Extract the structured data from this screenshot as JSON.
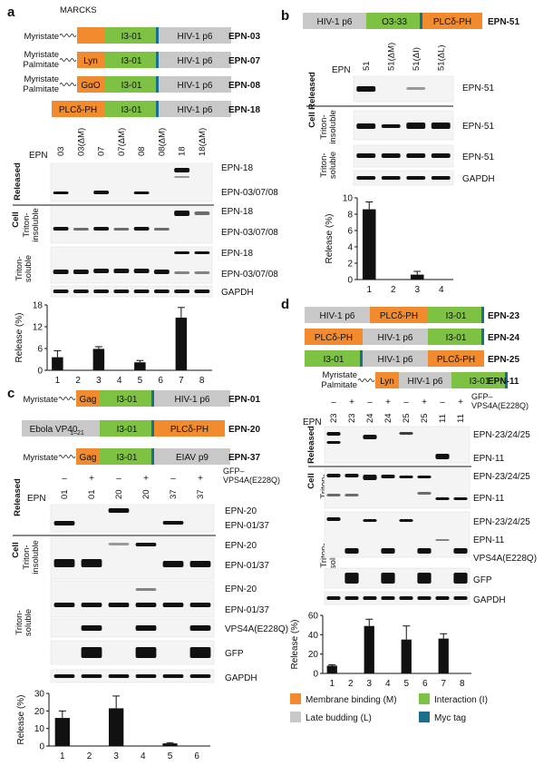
{
  "panels": {
    "a": {
      "letter": "a",
      "marcks_label": "MARCKS",
      "constructs": [
        {
          "lipid": [
            "Myristate"
          ],
          "blocks": [
            {
              "t": "",
              "c": "orange"
            },
            {
              "t": "I3-01",
              "c": "green"
            },
            {
              "t": "HIV-1 p6",
              "c": "grey"
            }
          ],
          "name": "EPN-03"
        },
        {
          "lipid": [
            "Myristate",
            "Palmitate"
          ],
          "blocks": [
            {
              "t": "Lyn",
              "c": "orange"
            },
            {
              "t": "I3-01",
              "c": "green"
            },
            {
              "t": "HIV-1 p6",
              "c": "grey"
            }
          ],
          "name": "EPN-07"
        },
        {
          "lipid": [
            "Myristate",
            "Palmitate"
          ],
          "blocks": [
            {
              "t": "GαO",
              "c": "orange"
            },
            {
              "t": "I3-01",
              "c": "green"
            },
            {
              "t": "HIV-1 p6",
              "c": "grey"
            }
          ],
          "name": "EPN-08"
        },
        {
          "lipid": [],
          "blocks": [
            {
              "t": "PLCδ-PH",
              "c": "orange"
            },
            {
              "t": "I3-01",
              "c": "green"
            },
            {
              "t": "HIV-1 p6",
              "c": "grey"
            }
          ],
          "name": "EPN-18"
        }
      ],
      "epn_label": "EPN",
      "lanes": [
        "03",
        "03(ΔM)",
        "07",
        "07(ΔM)",
        "08",
        "08(ΔM)",
        "18",
        "18(ΔM)"
      ],
      "released_label": "Released",
      "cell_label": "Cell",
      "triton_insoluble_label": "Triton-\ninsoluble",
      "triton_soluble_label": "Triton-\nsoluble",
      "bands": [
        "EPN-18",
        "EPN-03/07/08",
        "EPN-18",
        "EPN-03/07/08",
        "EPN-18",
        "EPN-03/07/08",
        "GAPDH"
      ],
      "chart": {
        "ylabel": "Release (%)",
        "yticks": [
          "0",
          "6",
          "12",
          "18"
        ],
        "xticks": [
          "1",
          "2",
          "3",
          "4",
          "5",
          "6",
          "7",
          "8"
        ]
      }
    },
    "b": {
      "letter": "b",
      "construct": {
        "blocks": [
          {
            "t": "HIV-1 p6",
            "c": "grey"
          },
          {
            "t": "O3-33",
            "c": "green"
          },
          {
            "t": "PLCδ-PH",
            "c": "orange"
          }
        ],
        "name": "EPN-51"
      },
      "epn_label": "EPN",
      "lanes": [
        "51",
        "51(ΔM)",
        "51(ΔI)",
        "51(ΔL)"
      ],
      "released_label": "Released",
      "cell_label": "Cell",
      "triton_insoluble_label": "Triton-\ninsoluble",
      "triton_soluble_label": "Triton-\nsoluble",
      "bands": [
        "EPN-51",
        "EPN-51",
        "EPN-51",
        "GAPDH"
      ],
      "chart": {
        "ylabel": "Release (%)",
        "yticks": [
          "0",
          "2",
          "4",
          "6",
          "8",
          "10"
        ],
        "xticks": [
          "1",
          "2",
          "3",
          "4"
        ]
      }
    },
    "c": {
      "letter": "c",
      "constructs": [
        {
          "lipid": [
            "Myristate"
          ],
          "blocks": [
            {
              "t": "Gag",
              "c": "orange"
            },
            {
              "t": "I3-01",
              "c": "green"
            },
            {
              "t": "HIV-1 p6",
              "c": "grey"
            }
          ],
          "name": "EPN-01"
        },
        {
          "lipid": [],
          "blocks": [
            {
              "t": "Ebola VP40",
              "sub": "1–21",
              "c": "grey"
            },
            {
              "t": "I3-01",
              "c": "green"
            },
            {
              "t": "PLCδ-PH",
              "c": "orange"
            }
          ],
          "name": "EPN-20"
        },
        {
          "lipid": [
            "Myristate"
          ],
          "blocks": [
            {
              "t": "Gag",
              "c": "orange"
            },
            {
              "t": "I3-01",
              "c": "green"
            },
            {
              "t": "EIAV p9",
              "c": "grey"
            }
          ],
          "name": "EPN-37"
        }
      ],
      "gfp_label": "GFP–\nVPS4A(E228Q)",
      "signs": [
        "–",
        "+",
        "–",
        "+",
        "–",
        "+"
      ],
      "epn_label": "EPN",
      "lanes": [
        "01",
        "01",
        "20",
        "20",
        "37",
        "37"
      ],
      "released_label": "Released",
      "cell_label": "Cell",
      "triton_insoluble_label": "Triton-\ninsoluble",
      "triton_soluble_label": "Triton-\nsoluble",
      "bands": [
        "EPN-20",
        "EPN-01/37",
        "EPN-20",
        "EPN-01/37",
        "EPN-20",
        "EPN-01/37",
        "VPS4A(E228Q)",
        "GFP",
        "GAPDH"
      ],
      "chart": {
        "ylabel": "Release (%)",
        "yticks": [
          "0",
          "10",
          "20",
          "30"
        ],
        "xticks": [
          "1",
          "2",
          "3",
          "4",
          "5",
          "6"
        ]
      }
    },
    "d": {
      "letter": "d",
      "constructs": [
        {
          "lipid": [],
          "blocks": [
            {
              "t": "HIV-1 p6",
              "c": "grey"
            },
            {
              "t": "PLCδ-PH",
              "c": "orange"
            },
            {
              "t": "I3-01",
              "c": "green"
            }
          ],
          "name": "EPN-23"
        },
        {
          "lipid": [],
          "blocks": [
            {
              "t": "PLCδ-PH",
              "c": "orange"
            },
            {
              "t": "HIV-1 p6",
              "c": "grey"
            },
            {
              "t": "I3-01",
              "c": "green"
            }
          ],
          "name": "EPN-24"
        },
        {
          "lipid": [],
          "blocks": [
            {
              "t": "I3-01",
              "c": "green"
            },
            {
              "t": "HIV-1 p6",
              "c": "grey"
            },
            {
              "t": "PLCδ-PH",
              "c": "orange"
            }
          ],
          "name": "EPN-25"
        },
        {
          "lipid": [
            "Myristate",
            "Palmitate"
          ],
          "blocks": [
            {
              "t": "Lyn",
              "c": "orange"
            },
            {
              "t": "HIV-1 p6",
              "c": "grey"
            },
            {
              "t": "I3-01",
              "c": "green"
            }
          ],
          "name": "EPN-11"
        }
      ],
      "gfp_label": "GFP–\nVPS4A(E228Q)",
      "signs": [
        "–",
        "+",
        "–",
        "+",
        "–",
        "+",
        "–",
        "+"
      ],
      "epn_label": "EPN",
      "lanes": [
        "23",
        "23",
        "24",
        "24",
        "25",
        "25",
        "11",
        "11"
      ],
      "released_label": "Released",
      "cell_label": "Cell",
      "triton_insoluble_label": "Triton-\ninsoluble",
      "triton_soluble_label": "Triton-\nsoluble",
      "bands": [
        "EPN-23/24/25",
        "EPN-11",
        "EPN-23/24/25",
        "EPN-11",
        "EPN-23/24/25",
        "EPN-11",
        "VPS4A(E228Q)",
        "GFP",
        "GAPDH"
      ],
      "chart": {
        "ylabel": "Release (%)",
        "yticks": [
          "0",
          "20",
          "40",
          "60"
        ],
        "xticks": [
          "1",
          "2",
          "3",
          "4",
          "5",
          "6",
          "7",
          "8"
        ]
      }
    }
  },
  "legend": [
    {
      "label": "Membrane binding (M)",
      "color": "#f28a2e"
    },
    {
      "label": "Interaction (I)",
      "color": "#7dc242"
    },
    {
      "label": "Late budding (L)",
      "color": "#c8c8c8"
    },
    {
      "label": "Myc tag",
      "color": "#1b6f8c"
    }
  ],
  "colors": {
    "orange": "#f28a2e",
    "green": "#7dc242",
    "grey": "#c8c8c8",
    "myc": "#1b6f8c"
  },
  "chart_data": [
    {
      "type": "bar",
      "panel": "a",
      "categories": [
        "1",
        "2",
        "3",
        "4",
        "5",
        "6",
        "7",
        "8"
      ],
      "values": [
        3.6,
        0,
        5.9,
        0,
        2.2,
        0,
        14.5,
        0
      ],
      "errors": [
        1.8,
        0,
        0.6,
        0,
        0.5,
        0,
        2.8,
        0
      ],
      "ylabel": "Release (%)",
      "ylim": [
        0,
        18
      ]
    },
    {
      "type": "bar",
      "panel": "b",
      "categories": [
        "1",
        "2",
        "3",
        "4"
      ],
      "values": [
        8.6,
        0,
        0.6,
        0
      ],
      "errors": [
        0.9,
        0,
        0.4,
        0
      ],
      "ylabel": "Release (%)",
      "ylim": [
        0,
        10
      ]
    },
    {
      "type": "bar",
      "panel": "c",
      "categories": [
        "1",
        "2",
        "3",
        "4",
        "5",
        "6"
      ],
      "values": [
        16,
        0,
        21.5,
        0,
        1.5,
        0
      ],
      "errors": [
        4,
        0,
        7,
        0,
        0.4,
        0
      ],
      "ylabel": "Release (%)",
      "ylim": [
        0,
        30
      ]
    },
    {
      "type": "bar",
      "panel": "d",
      "categories": [
        "1",
        "2",
        "3",
        "4",
        "5",
        "6",
        "7",
        "8"
      ],
      "values": [
        8,
        0,
        49,
        0,
        35,
        0,
        36,
        0
      ],
      "errors": [
        1,
        0,
        7,
        0,
        14,
        0,
        5,
        0
      ],
      "ylabel": "Release (%)",
      "ylim": [
        0,
        60
      ]
    }
  ]
}
